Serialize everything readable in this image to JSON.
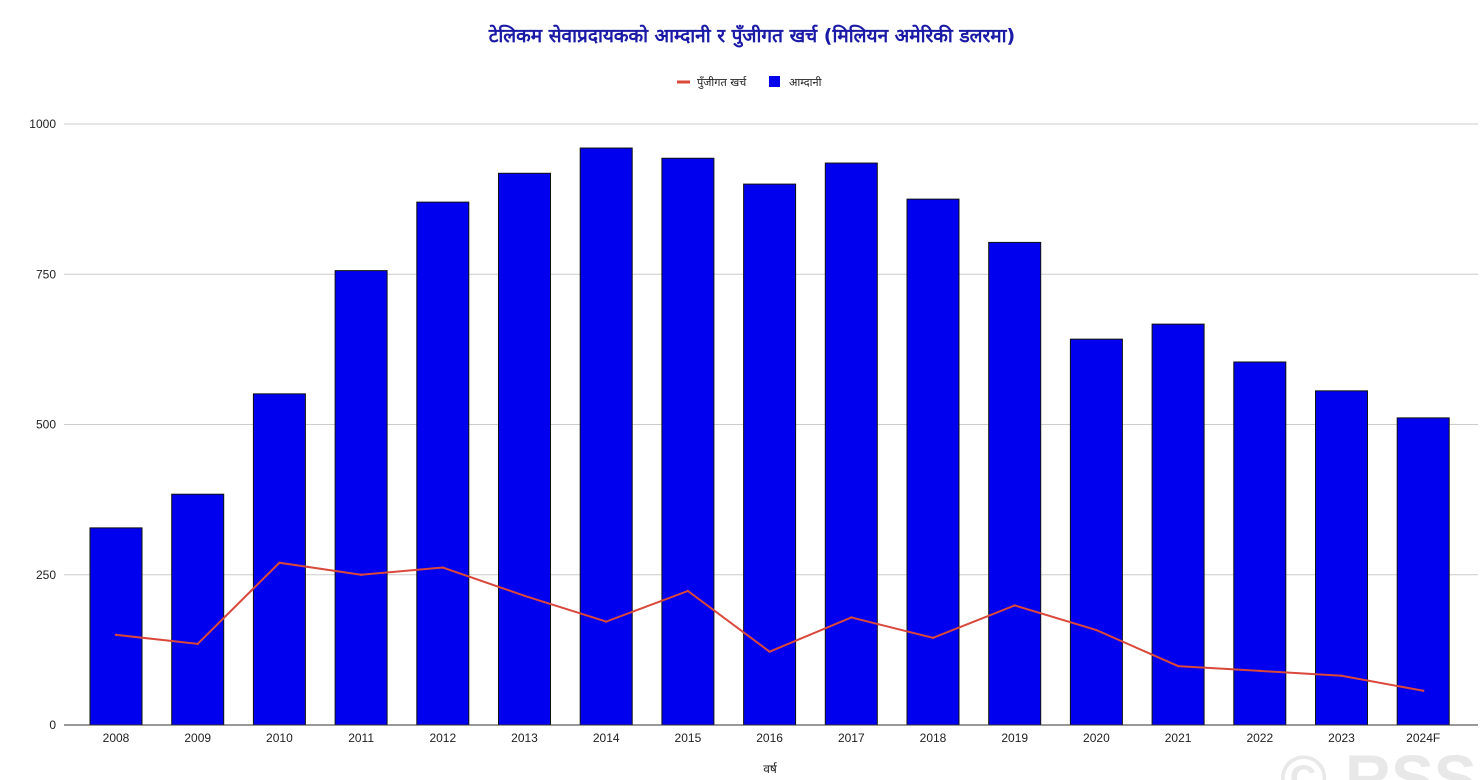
{
  "chart_data": {
    "type": "bar",
    "title": "टेलिकम सेवाप्रदायकको आम्दानी र पुँजीगत खर्च (मिलियन अमेरिकी डलरमा)",
    "xlabel": "वर्ष",
    "ylabel": "",
    "ylim": [
      0,
      1000
    ],
    "yticks": [
      0,
      250,
      500,
      750,
      1000
    ],
    "grid": true,
    "legend_position": "top-center",
    "categories": [
      "2008",
      "2009",
      "2010",
      "2011",
      "2012",
      "2013",
      "2014",
      "2015",
      "2016",
      "2017",
      "2018",
      "2019",
      "2020",
      "2021",
      "2022",
      "2023",
      "2024F"
    ],
    "series": [
      {
        "name": "पुँजीगत खर्च",
        "type": "line",
        "color": "#d9483b",
        "values": [
          150,
          135,
          270,
          250,
          262,
          215,
          172,
          223,
          122,
          179,
          145,
          199,
          158,
          98,
          90,
          82,
          57
        ]
      },
      {
        "name": "आम्दानी",
        "type": "bar",
        "color": "#0000ee",
        "values": [
          328,
          384,
          551,
          756,
          870,
          918,
          960,
          943,
          900,
          935,
          875,
          803,
          642,
          667,
          604,
          556,
          511
        ]
      }
    ]
  },
  "watermark": "© RSS"
}
